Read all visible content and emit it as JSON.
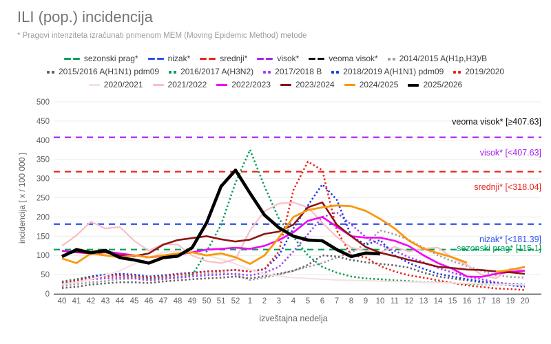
{
  "header": {
    "title": "ILI (pop.) incidencija",
    "subtitle": "* Pragovi intenziteta izračunati primenom MEM (Moving Epidemic Method) metode"
  },
  "legend": {
    "rows": [
      [
        {
          "label": "sezonski prag*",
          "color": "#00a05a",
          "marker": "dash"
        },
        {
          "label": "nizak*",
          "color": "#2b4ff2",
          "marker": "dash"
        },
        {
          "label": "srednji*",
          "color": "#e8261d",
          "marker": "dash"
        },
        {
          "label": "visok*",
          "color": "#a620f4",
          "marker": "dash"
        },
        {
          "label": "veoma visok*",
          "color": "#111111",
          "marker": "dash"
        },
        {
          "label": "2014/2015 A(H1p,H3)/B",
          "color": "#9e9e9e",
          "marker": "dots"
        }
      ],
      [
        {
          "label": "2015/2016 A(H1N1) pdm09",
          "color": "#616161",
          "marker": "dots"
        },
        {
          "label": "2016/2017 A(H3N2)",
          "color": "#0f9d58",
          "marker": "dots"
        },
        {
          "label": "2017/2018 B",
          "color": "#a142f4",
          "marker": "dots"
        },
        {
          "label": "2018/2019 A(H1N1) pdm09",
          "color": "#1a3ee8",
          "marker": "dots"
        },
        {
          "label": "2019/2020",
          "color": "#e8261d",
          "marker": "dots"
        }
      ],
      [
        {
          "label": "2020/2021",
          "color": "#f6e2e0",
          "marker": "line"
        },
        {
          "label": "2021/2022",
          "color": "#f8bfc6",
          "marker": "line"
        },
        {
          "label": "2022/2023",
          "color": "#f400f4",
          "marker": "line"
        },
        {
          "label": "2023/2024",
          "color": "#8c1515",
          "marker": "line"
        },
        {
          "label": "2024/2025",
          "color": "#f9980e",
          "marker": "line"
        },
        {
          "label": "2025/2026",
          "color": "#000000",
          "marker": "line",
          "thick": true
        }
      ]
    ]
  },
  "chart_data": {
    "type": "line",
    "title": "ILI (pop.) incidencija",
    "xlabel": "izveštajna nedelja",
    "ylabel": "incidencija [ x / 100 000 ]",
    "ylim": [
      0,
      500
    ],
    "ytick_step": 50,
    "grid": "horizontal",
    "weeks": [
      40,
      41,
      42,
      43,
      44,
      45,
      46,
      47,
      48,
      49,
      50,
      51,
      52,
      1,
      2,
      3,
      4,
      5,
      6,
      7,
      8,
      9,
      10,
      11,
      12,
      13,
      14,
      15,
      16,
      17,
      18,
      19,
      20
    ],
    "thresholds": [
      {
        "name": "sezonski prag*",
        "value": 115.1,
        "color": "#00a05a",
        "label": "sezonski prag* [115.1]",
        "label_value": 118.5
      },
      {
        "name": "nizak*",
        "value": 181.39,
        "color": "#2b4ff2",
        "label": "nizak* [<181.39]",
        "label_value": 142
      },
      {
        "name": "srednji*",
        "value": 318.04,
        "color": "#e8261d",
        "label": "srednji* [<318.04]",
        "label_value": 278
      },
      {
        "name": "visok*",
        "value": 407.63,
        "color": "#a620f4",
        "label": "visok* [<407.63]",
        "label_value": 367
      },
      {
        "name": "veoma visok*",
        "value": null,
        "color": "#111111",
        "label": "veoma visok* [≥407.63]",
        "label_value": 448
      }
    ],
    "series": [
      {
        "name": "2014/2015 A(H1p,H3)/B",
        "color": "#9e9e9e",
        "style": "dotted",
        "width": 2.6,
        "values": [
          20,
          25,
          30,
          33,
          38,
          40,
          38,
          42,
          45,
          50,
          52,
          55,
          50,
          36,
          42,
          50,
          60,
          70,
          80,
          95,
          108,
          130,
          165,
          155,
          140,
          120,
          100,
          85,
          72,
          60,
          48,
          44,
          42
        ]
      },
      {
        "name": "2015/2016 A(H1N1) pdm09",
        "color": "#616161",
        "style": "dotted",
        "width": 2.6,
        "values": [
          15,
          18,
          24,
          27,
          30,
          30,
          28,
          32,
          35,
          38,
          40,
          42,
          45,
          40,
          46,
          52,
          60,
          75,
          100,
          97,
          88,
          82,
          78,
          74,
          68,
          55,
          45,
          40,
          35,
          30,
          28,
          26,
          24
        ]
      },
      {
        "name": "2016/2017 A(H3N2)",
        "color": "#0f9d58",
        "style": "dotted",
        "width": 2.6,
        "values": [
          32,
          38,
          45,
          50,
          48,
          44,
          40,
          40,
          42,
          48,
          110,
          180,
          290,
          375,
          280,
          195,
          148,
          100,
          70,
          55,
          45,
          40,
          38,
          35,
          33,
          30,
          30,
          28,
          26,
          25,
          24,
          24,
          22
        ]
      },
      {
        "name": "2017/2018 B",
        "color": "#a142f4",
        "style": "dotted",
        "width": 2.6,
        "values": [
          25,
          30,
          38,
          40,
          42,
          40,
          35,
          38,
          42,
          45,
          48,
          50,
          52,
          48,
          55,
          70,
          110,
          155,
          200,
          212,
          180,
          148,
          128,
          112,
          95,
          82,
          68,
          55,
          45,
          38,
          30,
          25,
          20
        ]
      },
      {
        "name": "2018/2019 A(H1N1) pdm09",
        "color": "#1a3ee8",
        "style": "dotted",
        "width": 2.6,
        "values": [
          28,
          35,
          45,
          50,
          52,
          50,
          45,
          48,
          52,
          55,
          58,
          60,
          62,
          58,
          64,
          100,
          170,
          230,
          285,
          245,
          150,
          128,
          140,
          100,
          80,
          65,
          52,
          45,
          38,
          32,
          27,
          22,
          18
        ]
      },
      {
        "name": "2019/2020",
        "color": "#e8261d",
        "style": "dotted",
        "width": 2.6,
        "values": [
          30,
          35,
          42,
          45,
          48,
          46,
          42,
          45,
          50,
          54,
          58,
          60,
          62,
          58,
          64,
          110,
          270,
          344,
          322,
          165,
          100,
          95,
          72,
          58,
          48,
          42,
          35,
          28,
          22,
          18,
          14,
          12,
          10
        ]
      },
      {
        "name": "2020/2021",
        "color": "#f6e2e0",
        "style": "solid",
        "width": 2.2,
        "values": [
          25,
          30,
          38,
          48,
          60,
          78,
          95,
          108,
          112,
          108,
          100,
          90,
          78,
          62,
          52,
          46,
          42,
          40,
          38,
          36,
          35,
          34,
          33,
          32,
          31,
          30,
          29,
          28,
          27,
          26,
          25,
          24,
          23
        ]
      },
      {
        "name": "2021/2022",
        "color": "#f8bfc6",
        "style": "solid",
        "width": 2.2,
        "values": [
          125,
          152,
          188,
          170,
          174,
          138,
          112,
          130,
          128,
          100,
          85,
          80,
          90,
          165,
          215,
          235,
          238,
          225,
          185,
          148,
          120,
          112,
          108,
          122,
          110,
          118,
          120,
          93,
          75,
          50,
          40,
          66,
          60
        ]
      },
      {
        "name": "2022/2023",
        "color": "#f400f4",
        "style": "solid",
        "width": 2.6,
        "values": [
          112,
          108,
          105,
          110,
          105,
          100,
          95,
          98,
          102,
          108,
          115,
          117,
          120,
          117,
          125,
          140,
          160,
          190,
          200,
          175,
          150,
          146,
          146,
          138,
          124,
          100,
          80,
          65,
          45,
          44,
          52,
          57,
          60
        ]
      },
      {
        "name": "2023/2024",
        "color": "#8c1515",
        "style": "solid",
        "width": 2.6,
        "values": [
          100,
          110,
          105,
          108,
          100,
          98,
          105,
          128,
          140,
          145,
          150,
          142,
          136,
          141,
          156,
          162,
          180,
          225,
          238,
          180,
          150,
          122,
          107,
          98,
          88,
          80,
          70,
          67,
          63,
          62,
          58,
          56,
          52
        ]
      },
      {
        "name": "2024/2025",
        "color": "#f9980e",
        "style": "solid",
        "width": 2.8,
        "values": [
          92,
          80,
          105,
          100,
          95,
          100,
          95,
          100,
          105,
          108,
          100,
          105,
          95,
          78,
          100,
          146,
          200,
          218,
          225,
          230,
          228,
          216,
          195,
          170,
          138,
          117,
          106,
          95,
          81,
          null,
          57,
          62,
          70
        ]
      },
      {
        "name": "2025/2026",
        "color": "#000000",
        "style": "solid",
        "width": 4.6,
        "values": [
          97,
          115,
          107,
          113,
          94,
          88,
          80,
          94,
          98,
          120,
          185,
          280,
          322,
          262,
          205,
          172,
          150,
          140,
          138,
          115,
          97,
          106,
          104,
          null,
          null,
          null,
          null,
          null,
          null,
          null,
          null,
          null,
          null
        ]
      }
    ]
  }
}
